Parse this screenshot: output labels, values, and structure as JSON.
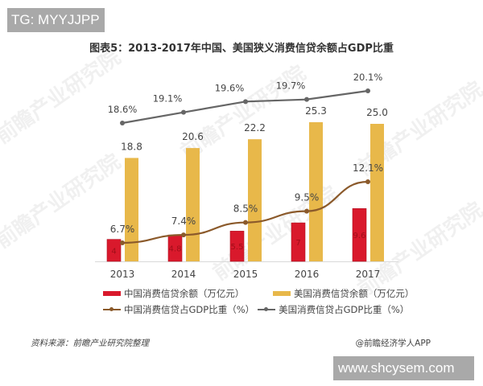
{
  "overlay": {
    "top_tag": "TG: MYYJJPP",
    "bottom_tag": "www.shcysem.com"
  },
  "header": {
    "title": "图表5：2013-2017年中国、美国狭义消费信贷余额占GDP比重"
  },
  "footer": {
    "source": "资料来源：前瞻产业研究院整理",
    "credit": "@前瞻经济学人APP"
  },
  "watermark": {
    "text": "前瞻产业研究院"
  },
  "colors": {
    "china_bar": "#d9192c",
    "us_bar": "#e8b84a",
    "china_line": "#8b5a2b",
    "us_line": "#666666",
    "axis": "#d9d9d9",
    "text": "#444444"
  },
  "legend": [
    {
      "label": "中国消费信贷余额（万亿元）",
      "type": "bar",
      "color": "#d9192c"
    },
    {
      "label": "美国消费信贷余额（万亿元）",
      "type": "bar",
      "color": "#e8b84a"
    },
    {
      "label": "中国消费信贷占GDP比重（%）",
      "type": "line",
      "color": "#8b5a2b"
    },
    {
      "label": "美国消费信贷占GDP比重（%）",
      "type": "line",
      "color": "#666666"
    }
  ],
  "chart_data": {
    "type": "bar",
    "title": "图表5：2013-2017年中国、美国狭义消费信贷余额占GDP比重",
    "categories": [
      "2013",
      "2014",
      "2015",
      "2016",
      "2017"
    ],
    "series": [
      {
        "name": "中国消费信贷余额（万亿元）",
        "type": "bar",
        "values": [
          4,
          4.8,
          5.5,
          7,
          9.6
        ],
        "labels": [
          "4",
          "4.8",
          "5.5",
          "7",
          "9.6"
        ]
      },
      {
        "name": "美国消费信贷余额（万亿元）",
        "type": "bar",
        "values": [
          18.8,
          20.6,
          22.2,
          25.3,
          25.0
        ],
        "labels": [
          "18.8",
          "20.6",
          "22.2",
          "25.3",
          "25.0"
        ]
      },
      {
        "name": "中国消费信贷占GDP比重（%）",
        "type": "line",
        "values": [
          6.7,
          7.4,
          8.5,
          9.5,
          12.1
        ],
        "labels": [
          "6.7%",
          "7.4%",
          "8.5%",
          "9.5%",
          "12.1%"
        ]
      },
      {
        "name": "美国消费信贷占GDP比重（%）",
        "type": "line",
        "values": [
          18.6,
          19.1,
          19.6,
          19.7,
          20.1
        ],
        "labels": [
          "18.6%",
          "19.1%",
          "19.6%",
          "19.7%",
          "20.1%"
        ]
      }
    ],
    "xlabel": "",
    "ylabel": "",
    "grid": false,
    "legend_position": "bottom"
  }
}
